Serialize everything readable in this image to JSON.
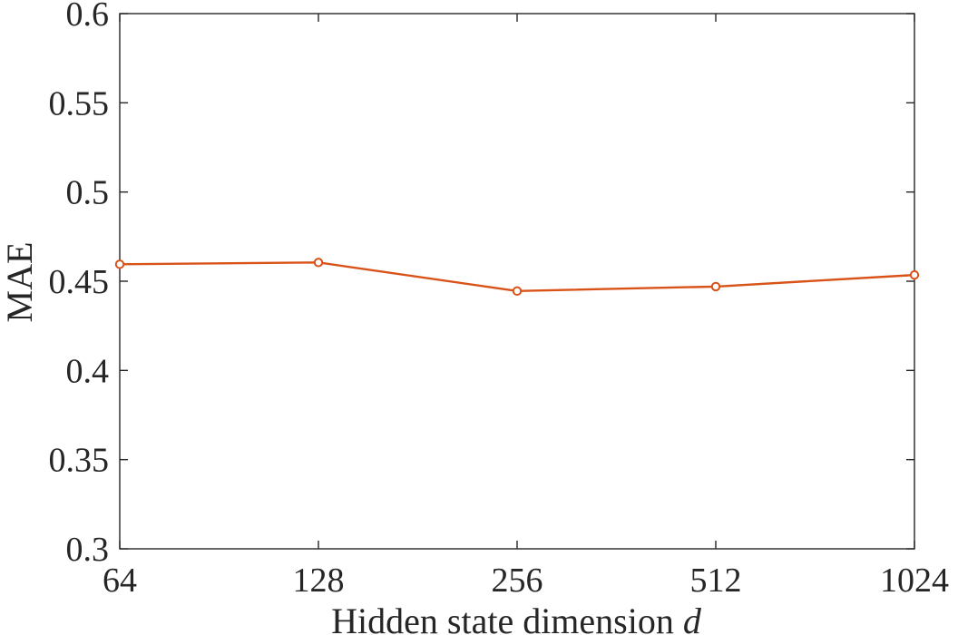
{
  "chart_data": {
    "type": "line",
    "xlabel": "Hidden state dimension",
    "xlabel_symbol": "d",
    "ylabel": "MAE",
    "categories": [
      "64",
      "128",
      "256",
      "512",
      "1024"
    ],
    "ylim": [
      0.3,
      0.6
    ],
    "yticks": [
      0.3,
      0.35,
      0.4,
      0.45,
      0.5,
      0.55,
      0.6
    ],
    "ytick_labels": [
      "0.3",
      "0.35",
      "0.4",
      "0.45",
      "0.5",
      "0.55",
      "0.6"
    ],
    "grid": false,
    "box": true,
    "series": [
      {
        "values": [
          0.4595,
          0.4605,
          0.4445,
          0.447,
          0.4535
        ],
        "color": "#D95319",
        "marker": "circle"
      }
    ]
  }
}
